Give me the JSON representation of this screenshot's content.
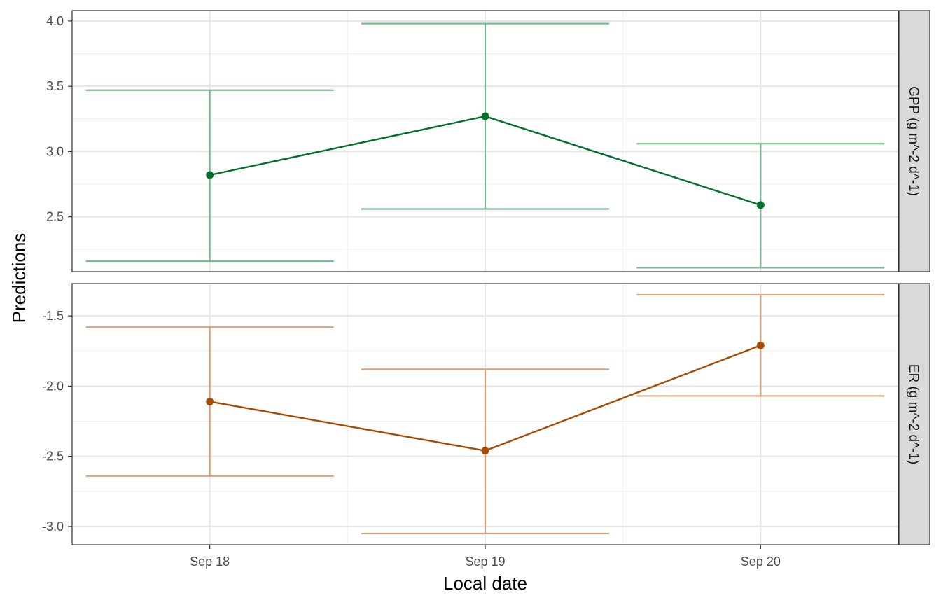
{
  "chart_data": {
    "type": "line",
    "xlabel": "Local date",
    "ylabel": "Predictions",
    "categories": [
      "Sep 18",
      "Sep 19",
      "Sep 20"
    ],
    "grid": true,
    "panels": [
      {
        "strip_label": "GPP (g m^-2 d^-1)",
        "color": "#00712c",
        "errorbar_color": "#7bbb92",
        "ylim": [
          2.08,
          4.08
        ],
        "yticks": [
          2.5,
          3.0,
          3.5,
          4.0
        ],
        "ytick_labels": [
          "2.5",
          "3.0",
          "3.5",
          "4.0"
        ],
        "values": [
          2.82,
          3.27,
          2.59
        ],
        "lower": [
          2.16,
          2.56,
          2.11
        ],
        "upper": [
          3.47,
          3.98,
          3.06
        ]
      },
      {
        "strip_label": "ER (g m^-2 d^-1)",
        "color": "#a74b00",
        "errorbar_color": "#d5a47e",
        "ylim": [
          -3.13,
          -1.27
        ],
        "yticks": [
          -3.0,
          -2.5,
          -2.0,
          -1.5
        ],
        "ytick_labels": [
          "-3.0",
          "-2.5",
          "-2.0",
          "-1.5"
        ],
        "values": [
          -2.11,
          -2.46,
          -1.71
        ],
        "lower": [
          -2.64,
          -3.05,
          -2.07
        ],
        "upper": [
          -1.58,
          -1.88,
          -1.35
        ]
      }
    ]
  }
}
